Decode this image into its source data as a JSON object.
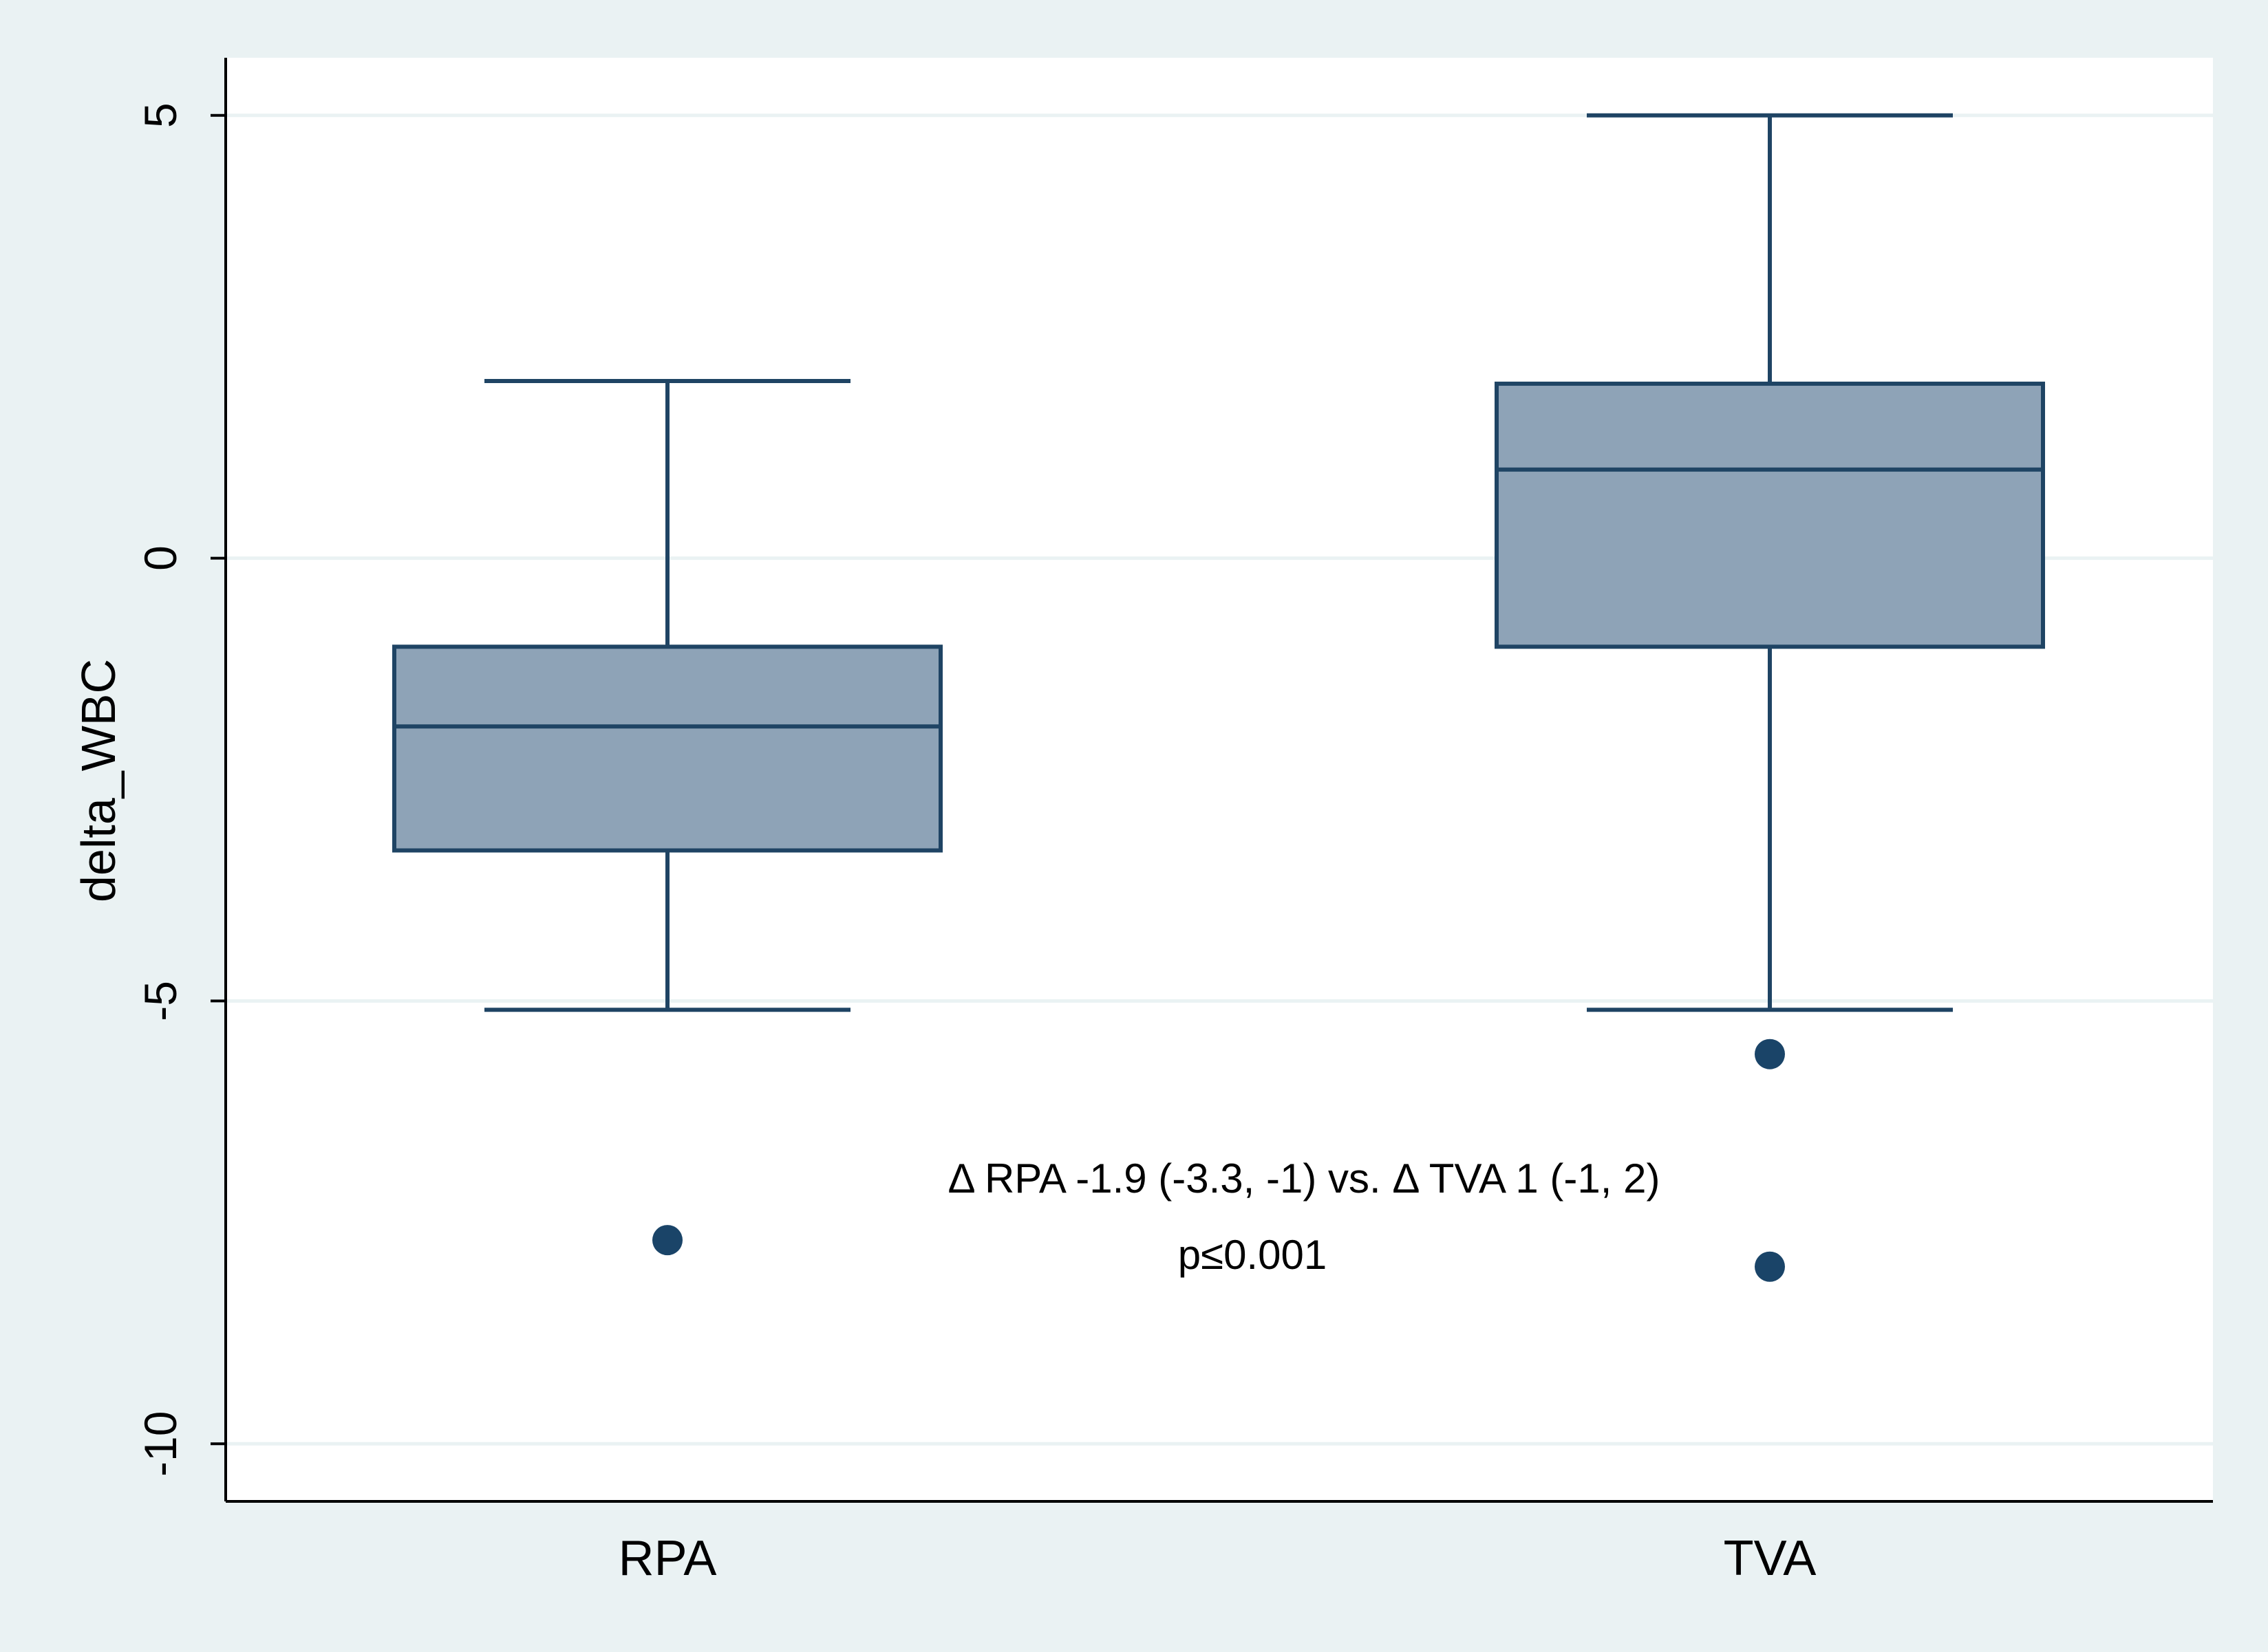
{
  "chart_data": {
    "type": "box",
    "title": "",
    "xlabel": "",
    "ylabel": "delta_WBC",
    "ylim": [
      -10.65,
      5.65
    ],
    "yticks": [
      5,
      0,
      -5,
      -10
    ],
    "ytick_labels": [
      "5",
      "0",
      "-5",
      "-10"
    ],
    "grid": true,
    "legend": "none",
    "categories": [
      "RPA",
      "TVA"
    ],
    "boxes": [
      {
        "category": "RPA",
        "whisker_low": -5.1,
        "q1": -3.3,
        "median": -1.9,
        "q3": -1.0,
        "whisker_high": 2.0,
        "outliers": [
          -7.7
        ]
      },
      {
        "category": "TVA",
        "whisker_low": -5.1,
        "q1": -1.0,
        "median": 1.0,
        "q3": 1.97,
        "whisker_high": 5.0,
        "outliers": [
          -5.6,
          -8.0
        ]
      }
    ],
    "annotations": [
      "Δ RPA -1.9 (-3.3, -1) vs. Δ TVA 1 (-1, 2)",
      "p≤0.001"
    ],
    "colors": {
      "outer_background": "#EAF2F3",
      "plot_background": "#FFFFFF",
      "box_fill": "#8EA3B7",
      "box_stroke": "#1F4464",
      "outlier": "#1A4468",
      "grid": "#EAF2F3",
      "axis": "#000000"
    }
  }
}
